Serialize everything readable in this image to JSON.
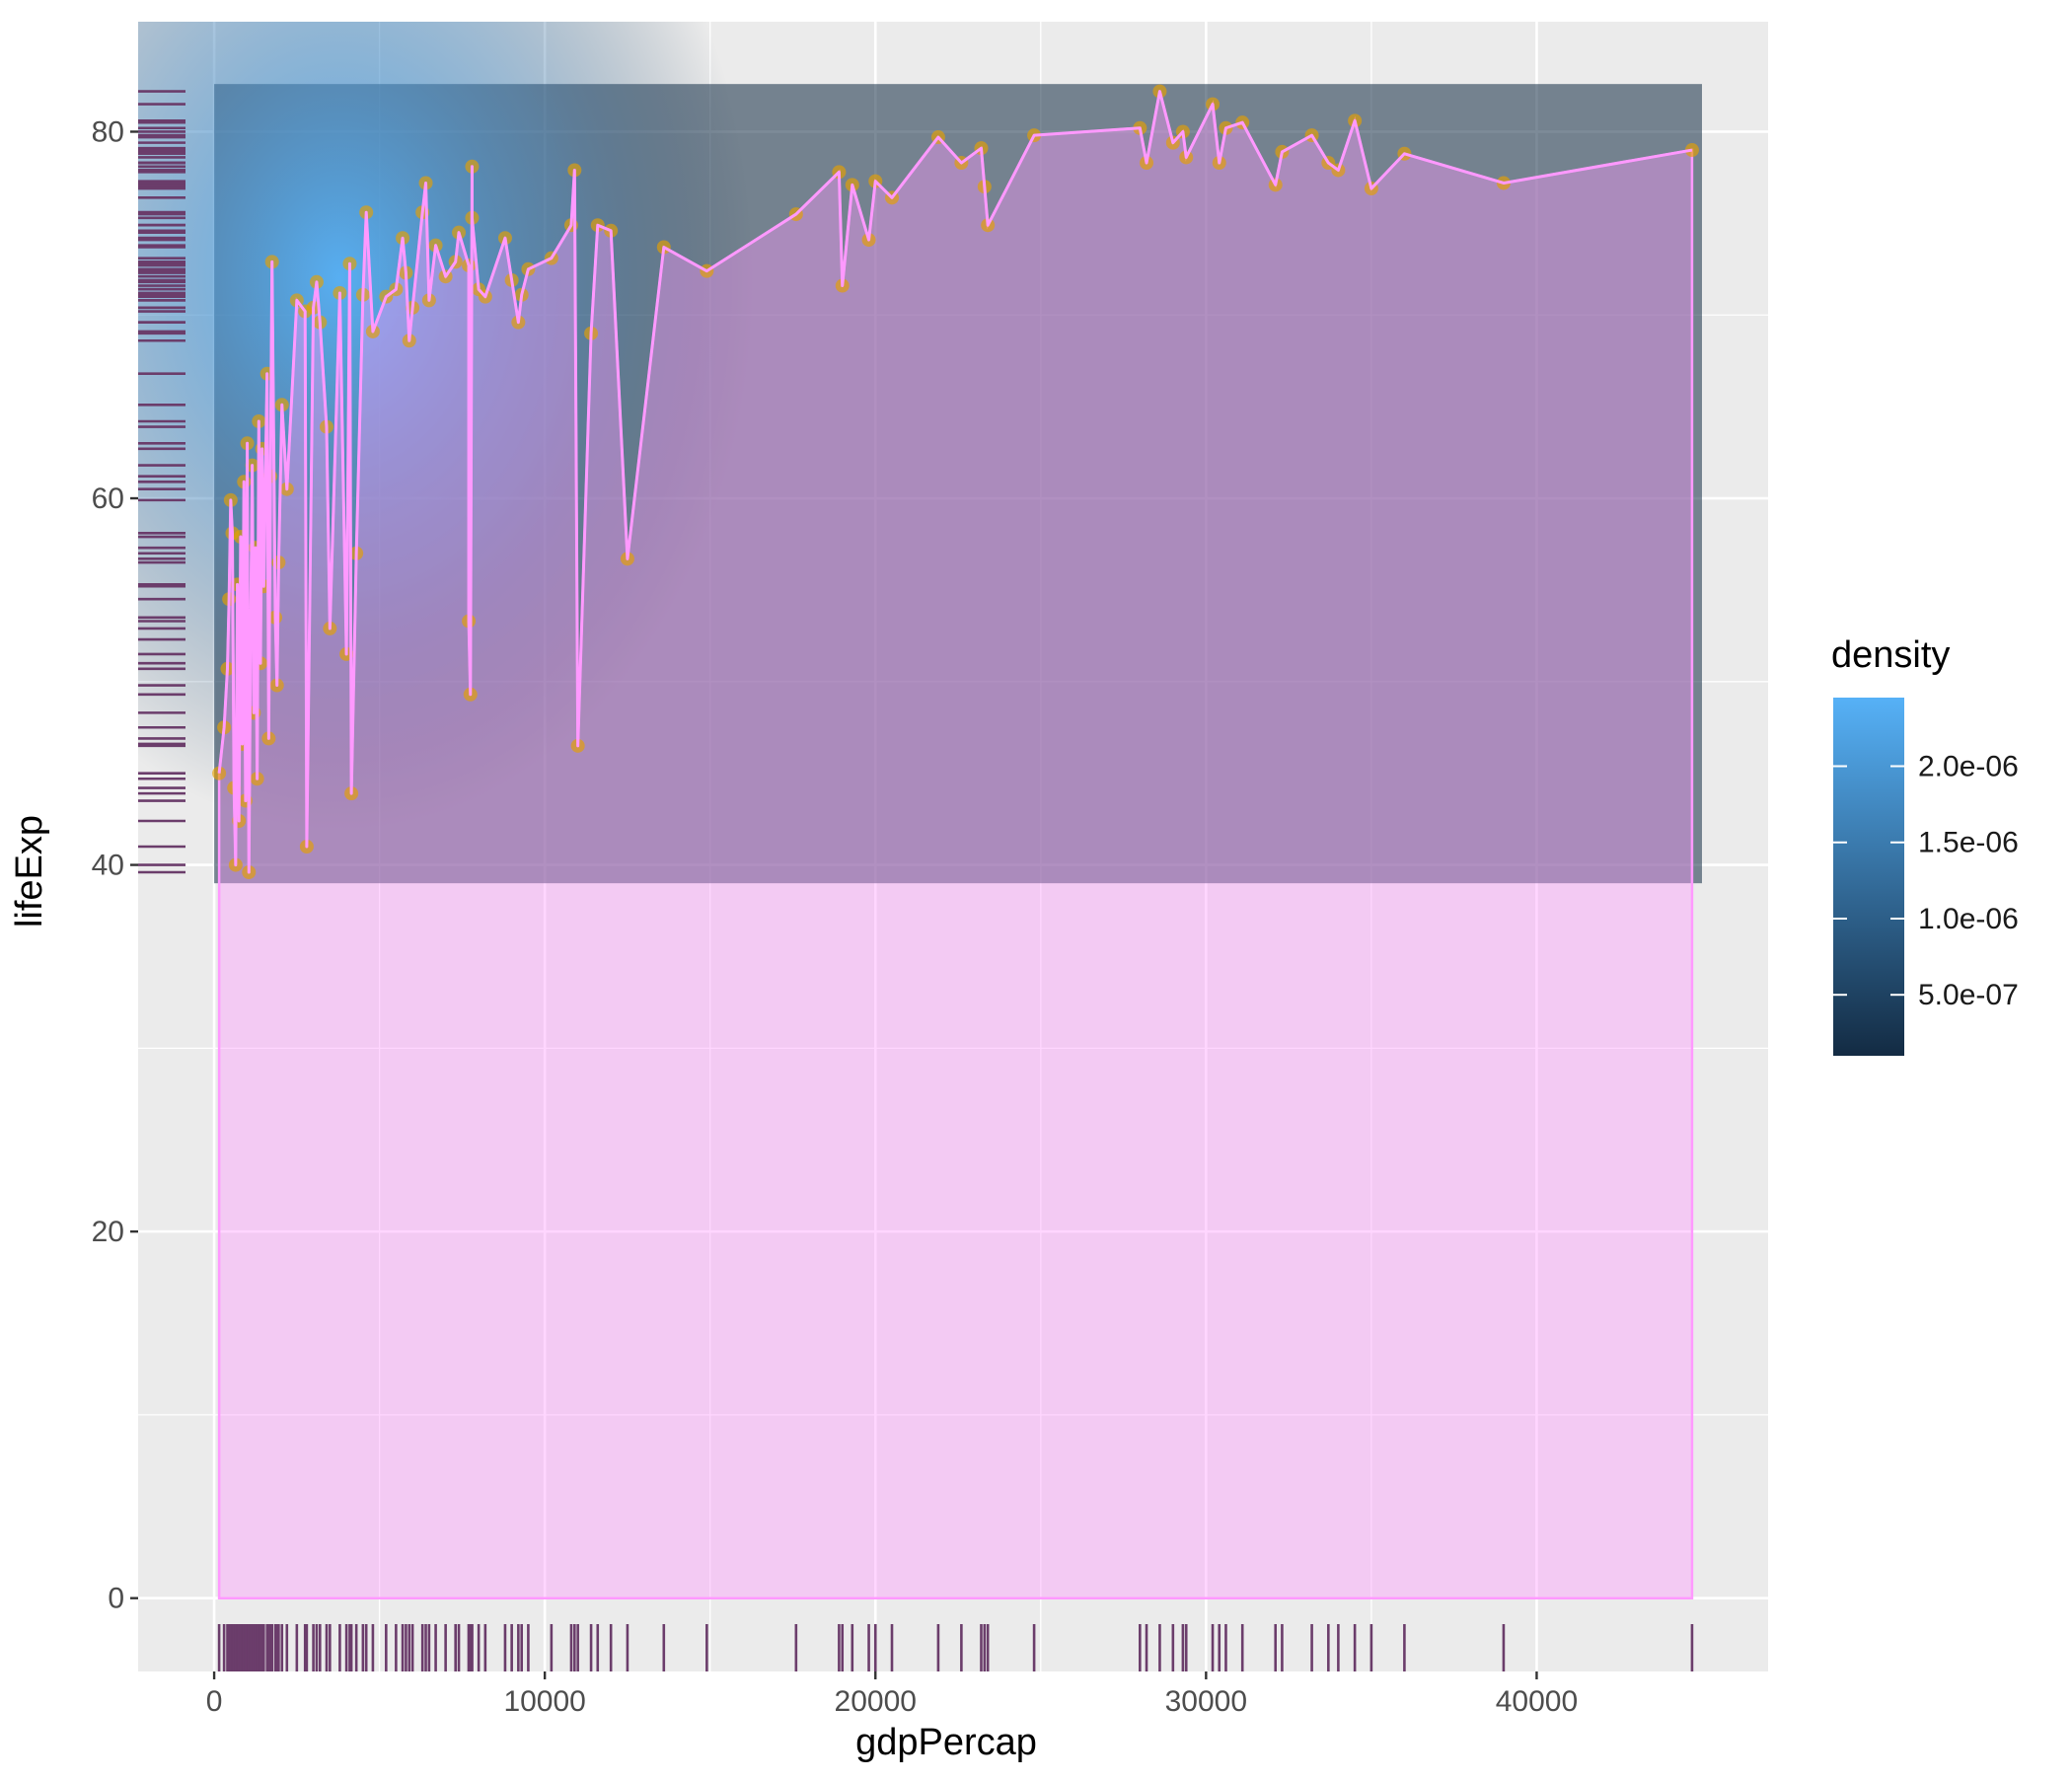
{
  "chart_data": {
    "type": "scatter",
    "xlabel": "gdpPercap",
    "ylabel": "lifeExp",
    "xlim": [
      -2300,
      47000
    ],
    "ylim": [
      -4,
      86
    ],
    "x_ticks": [
      0,
      10000,
      20000,
      30000,
      40000
    ],
    "x_tick_labels": [
      "0",
      "10000",
      "20000",
      "30000",
      "40000"
    ],
    "y_ticks": [
      0,
      20,
      40,
      60,
      80
    ],
    "y_tick_labels": [
      "0",
      "20",
      "40",
      "60",
      "80"
    ],
    "grid": true,
    "legend": {
      "title": "density",
      "position": "right",
      "labels": [
        "2.0e-06",
        "1.5e-06",
        "1.0e-06",
        "5.0e-07"
      ],
      "values": [
        2e-06,
        1.5e-06,
        1e-06,
        5e-07
      ],
      "range": [
        1e-07,
        2.45e-06
      ],
      "color_low": "#132B43",
      "color_high": "#56B1F7"
    },
    "density_raster_extent": {
      "x": [
        0,
        45000
      ],
      "y": [
        39,
        82.6
      ]
    },
    "area_color": "#ff99ff",
    "line_color": "#ff99ff",
    "point_color": "#e69f00",
    "rug_color": "#6b3d6b",
    "points": [
      {
        "x": 150,
        "y": 45
      },
      {
        "x": 300,
        "y": 47.5
      },
      {
        "x": 400,
        "y": 50.7
      },
      {
        "x": 450,
        "y": 54.5
      },
      {
        "x": 500,
        "y": 59.9
      },
      {
        "x": 550,
        "y": 58.1
      },
      {
        "x": 600,
        "y": 44.2
      },
      {
        "x": 650,
        "y": 40
      },
      {
        "x": 700,
        "y": 55.3
      },
      {
        "x": 750,
        "y": 42.4
      },
      {
        "x": 800,
        "y": 57.9
      },
      {
        "x": 850,
        "y": 46.6
      },
      {
        "x": 900,
        "y": 60.9
      },
      {
        "x": 950,
        "y": 43.5
      },
      {
        "x": 1000,
        "y": 63
      },
      {
        "x": 1050,
        "y": 39.6
      },
      {
        "x": 1100,
        "y": 52.3
      },
      {
        "x": 1150,
        "y": 61.8
      },
      {
        "x": 1200,
        "y": 48.3
      },
      {
        "x": 1250,
        "y": 57.3
      },
      {
        "x": 1300,
        "y": 44.7
      },
      {
        "x": 1350,
        "y": 64.2
      },
      {
        "x": 1400,
        "y": 51
      },
      {
        "x": 1450,
        "y": 62.7
      },
      {
        "x": 1500,
        "y": 55.2
      },
      {
        "x": 1600,
        "y": 66.8
      },
      {
        "x": 1650,
        "y": 46.9
      },
      {
        "x": 1700,
        "y": 61.2
      },
      {
        "x": 1750,
        "y": 72.9
      },
      {
        "x": 1850,
        "y": 53.5
      },
      {
        "x": 1900,
        "y": 49.8
      },
      {
        "x": 1950,
        "y": 56.5
      },
      {
        "x": 2050,
        "y": 65.1
      },
      {
        "x": 2200,
        "y": 60.5
      },
      {
        "x": 2500,
        "y": 70.8
      },
      {
        "x": 2750,
        "y": 70.2
      },
      {
        "x": 2800,
        "y": 41
      },
      {
        "x": 3000,
        "y": 70.4
      },
      {
        "x": 3100,
        "y": 71.8
      },
      {
        "x": 3200,
        "y": 69.6
      },
      {
        "x": 3400,
        "y": 63.9
      },
      {
        "x": 3500,
        "y": 52.9
      },
      {
        "x": 3800,
        "y": 71.2
      },
      {
        "x": 4000,
        "y": 51.5
      },
      {
        "x": 4100,
        "y": 72.8
      },
      {
        "x": 4150,
        "y": 43.9
      },
      {
        "x": 4300,
        "y": 57
      },
      {
        "x": 4500,
        "y": 71.1
      },
      {
        "x": 4600,
        "y": 75.6
      },
      {
        "x": 4800,
        "y": 69.1
      },
      {
        "x": 5200,
        "y": 71
      },
      {
        "x": 5500,
        "y": 71.4
      },
      {
        "x": 5700,
        "y": 74.2
      },
      {
        "x": 5800,
        "y": 72.3
      },
      {
        "x": 5900,
        "y": 68.6
      },
      {
        "x": 6000,
        "y": 70.4
      },
      {
        "x": 6300,
        "y": 75.6
      },
      {
        "x": 6400,
        "y": 77.2
      },
      {
        "x": 6500,
        "y": 70.8
      },
      {
        "x": 6700,
        "y": 73.8
      },
      {
        "x": 7000,
        "y": 72.1
      },
      {
        "x": 7300,
        "y": 72.9
      },
      {
        "x": 7400,
        "y": 74.5
      },
      {
        "x": 7700,
        "y": 72.7
      },
      {
        "x": 7700,
        "y": 53.3
      },
      {
        "x": 7750,
        "y": 49.3
      },
      {
        "x": 7800,
        "y": 78.1
      },
      {
        "x": 7800,
        "y": 75.3
      },
      {
        "x": 8000,
        "y": 71.4
      },
      {
        "x": 8200,
        "y": 71
      },
      {
        "x": 8800,
        "y": 74.2
      },
      {
        "x": 9000,
        "y": 71.9
      },
      {
        "x": 9200,
        "y": 69.6
      },
      {
        "x": 9300,
        "y": 71.1
      },
      {
        "x": 9500,
        "y": 72.5
      },
      {
        "x": 10200,
        "y": 73.1
      },
      {
        "x": 10800,
        "y": 74.9
      },
      {
        "x": 10900,
        "y": 77.9
      },
      {
        "x": 11000,
        "y": 46.5
      },
      {
        "x": 11400,
        "y": 69
      },
      {
        "x": 11600,
        "y": 74.9
      },
      {
        "x": 12000,
        "y": 74.6
      },
      {
        "x": 12500,
        "y": 56.7
      },
      {
        "x": 13600,
        "y": 73.7
      },
      {
        "x": 14900,
        "y": 72.4
      },
      {
        "x": 17600,
        "y": 75.5
      },
      {
        "x": 18900,
        "y": 77.8
      },
      {
        "x": 19000,
        "y": 71.6
      },
      {
        "x": 19300,
        "y": 77.1
      },
      {
        "x": 19800,
        "y": 74.1
      },
      {
        "x": 20000,
        "y": 77.3
      },
      {
        "x": 20500,
        "y": 76.4
      },
      {
        "x": 21900,
        "y": 79.7
      },
      {
        "x": 22600,
        "y": 78.3
      },
      {
        "x": 23200,
        "y": 79.1
      },
      {
        "x": 23300,
        "y": 77
      },
      {
        "x": 23400,
        "y": 74.9
      },
      {
        "x": 24800,
        "y": 79.8
      },
      {
        "x": 28000,
        "y": 80.2
      },
      {
        "x": 28200,
        "y": 78.3
      },
      {
        "x": 28600,
        "y": 82.2
      },
      {
        "x": 29000,
        "y": 79.4
      },
      {
        "x": 29300,
        "y": 80
      },
      {
        "x": 29400,
        "y": 78.6
      },
      {
        "x": 30200,
        "y": 81.5
      },
      {
        "x": 30400,
        "y": 78.3
      },
      {
        "x": 30600,
        "y": 80.2
      },
      {
        "x": 31100,
        "y": 80.5
      },
      {
        "x": 32100,
        "y": 77.1
      },
      {
        "x": 32300,
        "y": 78.9
      },
      {
        "x": 33200,
        "y": 79.8
      },
      {
        "x": 33700,
        "y": 78.3
      },
      {
        "x": 34000,
        "y": 77.9
      },
      {
        "x": 34500,
        "y": 80.6
      },
      {
        "x": 35000,
        "y": 76.9
      },
      {
        "x": 36000,
        "y": 78.8
      },
      {
        "x": 39000,
        "y": 77.2
      },
      {
        "x": 44700,
        "y": 79
      }
    ]
  }
}
